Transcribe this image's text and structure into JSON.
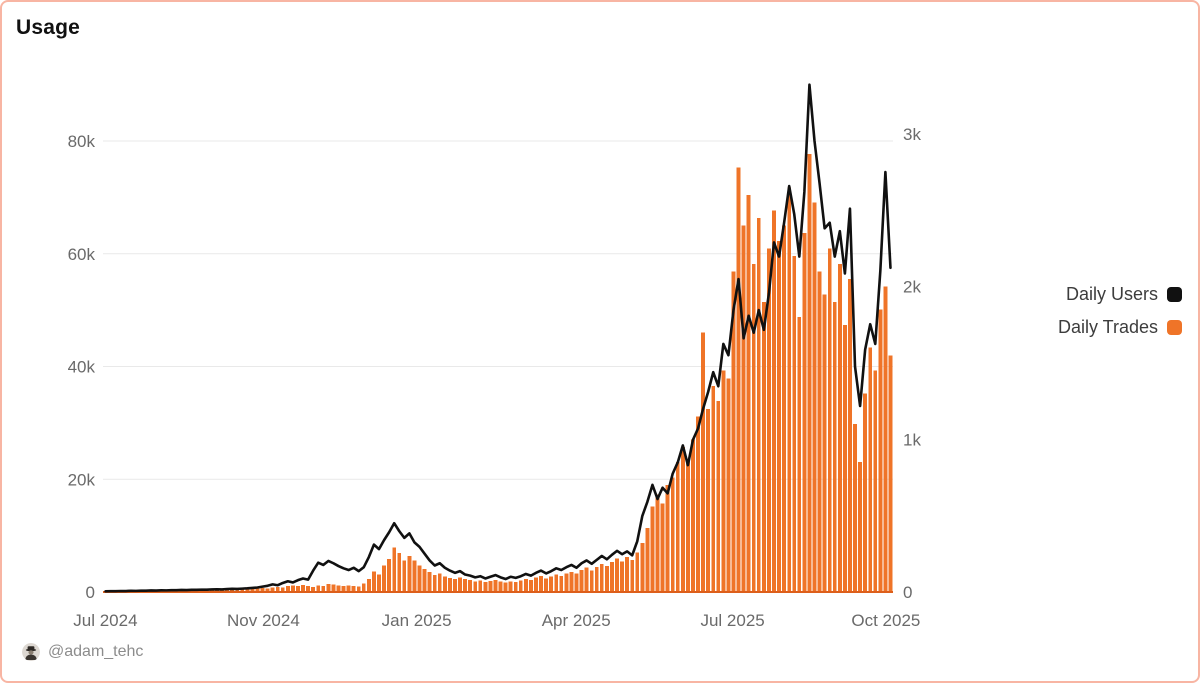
{
  "header": {
    "title": "Usage"
  },
  "legend": {
    "items": [
      {
        "label": "Daily Users",
        "color": "#111111"
      },
      {
        "label": "Daily Trades",
        "color": "#ef7428"
      }
    ]
  },
  "footer": {
    "handle": "@adam_tehc",
    "avatar_icon": "spy-avatar"
  },
  "colors": {
    "accent_orange": "#ef7428",
    "line_black": "#111111",
    "frame_border": "#f8b5a3",
    "axis_text": "#6a6a6a",
    "gridline": "#e9e9e9",
    "axis_baseline_orange": "#dd5f1b"
  },
  "chart_data": {
    "type": "mixed",
    "title": "Usage",
    "grid": true,
    "legend_position": "right",
    "x_axis": {
      "start_date": "2024-07-01",
      "step_days": 3,
      "ticks": [
        "Jul 2024",
        "Nov 2024",
        "Jan 2025",
        "Apr 2025",
        "Jul 2025",
        "Oct 2025"
      ]
    },
    "left_axis": {
      "label_for": "Daily Users",
      "ticks": [
        "0",
        "20k",
        "40k",
        "60k",
        "80k"
      ],
      "tick_values": [
        0,
        20000,
        40000,
        60000,
        80000
      ],
      "range": [
        0,
        90000
      ]
    },
    "right_axis": {
      "label_for": "Daily Trades",
      "ticks": [
        "0",
        "1k",
        "2k",
        "3k"
      ],
      "tick_values": [
        0,
        1000,
        2000,
        3000
      ],
      "range": [
        0,
        3000
      ]
    },
    "series": [
      {
        "name": "Daily Users",
        "type": "line",
        "axis": "left",
        "color": "#111111",
        "values": [
          120,
          150,
          140,
          180,
          170,
          210,
          200,
          240,
          230,
          270,
          260,
          300,
          290,
          330,
          320,
          360,
          350,
          390,
          380,
          420,
          410,
          450,
          480,
          460,
          520,
          560,
          540,
          600,
          650,
          720,
          800,
          950,
          1100,
          1350,
          1200,
          1600,
          1900,
          1700,
          2100,
          2400,
          2200,
          3800,
          5200,
          4800,
          5500,
          5100,
          4600,
          4200,
          3900,
          4300,
          3700,
          4400,
          6200,
          8400,
          7600,
          9200,
          10600,
          12200,
          10800,
          9600,
          10400,
          8800,
          8000,
          6800,
          5600,
          4700,
          5100,
          4300,
          3800,
          3400,
          3700,
          3100,
          2900,
          2600,
          2800,
          2400,
          2700,
          3000,
          2600,
          2300,
          2700,
          2500,
          2800,
          3200,
          2900,
          3400,
          3800,
          3300,
          3700,
          4200,
          3900,
          4400,
          4800,
          4300,
          5100,
          5600,
          5000,
          5700,
          6400,
          5800,
          6600,
          7300,
          6700,
          7200,
          6500,
          9000,
          13500,
          16000,
          19000,
          16500,
          18500,
          17500,
          21000,
          23000,
          26000,
          22500,
          27000,
          29000,
          32500,
          35500,
          39000,
          36500,
          44000,
          42000,
          50000,
          55500,
          45000,
          49000,
          46000,
          50000,
          46500,
          53000,
          62000,
          59500,
          65500,
          72000,
          67000,
          59500,
          71000,
          90000,
          80000,
          72500,
          64500,
          65500,
          59500,
          64000,
          56500,
          68000,
          40000,
          33000,
          43000,
          47500,
          44000,
          57000,
          74500,
          57500
        ]
      },
      {
        "name": "Daily Trades",
        "type": "bar",
        "axis": "right",
        "color": "#ef7428",
        "values": [
          0,
          2,
          1,
          3,
          2,
          4,
          3,
          5,
          4,
          6,
          5,
          8,
          6,
          9,
          8,
          10,
          9,
          12,
          10,
          14,
          10,
          12,
          11,
          14,
          13,
          16,
          15,
          18,
          17,
          20,
          22,
          26,
          24,
          30,
          34,
          31,
          38,
          42,
          39,
          45,
          40,
          34,
          44,
          40,
          52,
          48,
          44,
          40,
          44,
          38,
          36,
          55,
          85,
          135,
          115,
          175,
          215,
          290,
          255,
          205,
          235,
          205,
          175,
          150,
          130,
          112,
          122,
          102,
          92,
          86,
          95,
          85,
          80,
          70,
          75,
          65,
          72,
          78,
          68,
          62,
          70,
          66,
          75,
          85,
          80,
          95,
          105,
          90,
          100,
          115,
          105,
          120,
          130,
          120,
          145,
          160,
          140,
          165,
          185,
          170,
          195,
          220,
          200,
          230,
          210,
          260,
          320,
          420,
          560,
          640,
          580,
          700,
          750,
          850,
          950,
          870,
          1000,
          1150,
          1700,
          1200,
          1350,
          1250,
          1450,
          1400,
          2100,
          2780,
          2400,
          2600,
          2150,
          2450,
          1900,
          2250,
          2500,
          2300,
          2400,
          2650,
          2200,
          1800,
          2350,
          2870,
          2550,
          2100,
          1950,
          2250,
          1900,
          2150,
          1750,
          2050,
          1100,
          850,
          1300,
          1600,
          1450,
          1850,
          2000,
          1550
        ]
      }
    ]
  }
}
